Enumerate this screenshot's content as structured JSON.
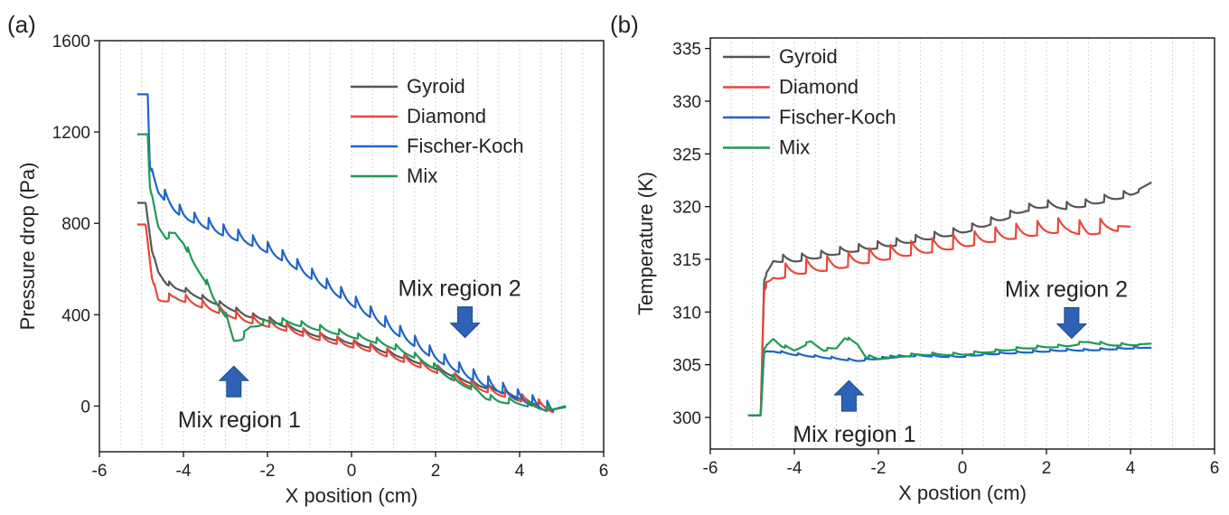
{
  "chart_data": [
    {
      "type": "line",
      "panel_label": "(a)",
      "xlabel": "X position (cm)",
      "ylabel": "Pressure drop (Pa)",
      "xlim": [
        -6,
        6
      ],
      "ylim": [
        -200,
        1600
      ],
      "xticks": [
        -6,
        -4,
        -2,
        0,
        2,
        4,
        6
      ],
      "yticks": [
        0,
        400,
        800,
        1200,
        1600
      ],
      "grid": "vertical dotted",
      "legend": "top-right",
      "annotations": [
        {
          "text": "Mix region 1",
          "arrow": "up",
          "x": -2.8,
          "y": 175
        },
        {
          "text": "Mix region 2",
          "arrow": "down",
          "x": 2.7,
          "y": 300
        }
      ],
      "series": [
        {
          "name": "Gyroid",
          "color": "#555555",
          "points": [
            [
              -5.1,
              890
            ],
            [
              -4.9,
              890
            ],
            [
              -4.75,
              680
            ],
            [
              -4.6,
              590
            ],
            [
              -4.4,
              540
            ],
            [
              -4.2,
              520
            ],
            [
              -4.0,
              510
            ],
            [
              -3.5,
              470
            ],
            [
              -3.0,
              440
            ],
            [
              -2.5,
              400
            ],
            [
              -2.0,
              380
            ],
            [
              -1.5,
              350
            ],
            [
              -1.0,
              320
            ],
            [
              -0.5,
              300
            ],
            [
              0,
              280
            ],
            [
              0.5,
              260
            ],
            [
              1.0,
              230
            ],
            [
              1.5,
              200
            ],
            [
              2.0,
              170
            ],
            [
              2.5,
              130
            ],
            [
              3.0,
              95
            ],
            [
              3.5,
              70
            ],
            [
              4.0,
              40
            ],
            [
              4.5,
              5
            ],
            [
              4.8,
              -15
            ],
            [
              5.1,
              0
            ]
          ],
          "osc": {
            "amp": 20,
            "period": 0.4
          }
        },
        {
          "name": "Diamond",
          "color": "#e8473c",
          "points": [
            [
              -5.1,
              795
            ],
            [
              -4.9,
              795
            ],
            [
              -4.75,
              560
            ],
            [
              -4.6,
              470
            ],
            [
              -4.4,
              470
            ],
            [
              -4.2,
              480
            ],
            [
              -4.0,
              470
            ],
            [
              -3.5,
              440
            ],
            [
              -3.0,
              410
            ],
            [
              -2.5,
              380
            ],
            [
              -2.0,
              360
            ],
            [
              -1.5,
              340
            ],
            [
              -1.0,
              310
            ],
            [
              -0.5,
              290
            ],
            [
              0,
              270
            ],
            [
              0.5,
              250
            ],
            [
              1.0,
              220
            ],
            [
              1.5,
              190
            ],
            [
              2.0,
              160
            ],
            [
              2.5,
              120
            ],
            [
              3.0,
              85
            ],
            [
              3.5,
              60
            ],
            [
              4.0,
              35
            ],
            [
              4.5,
              5
            ],
            [
              4.8,
              -15
            ],
            [
              5.1,
              0
            ]
          ],
          "osc": {
            "amp": 35,
            "period": 0.4
          }
        },
        {
          "name": "Fischer-Koch",
          "color": "#1f64c8",
          "points": [
            [
              -5.1,
              1365
            ],
            [
              -4.85,
              1365
            ],
            [
              -4.8,
              1050
            ],
            [
              -4.6,
              950
            ],
            [
              -4.2,
              870
            ],
            [
              -4.0,
              840
            ],
            [
              -3.5,
              800
            ],
            [
              -3.0,
              760
            ],
            [
              -2.5,
              730
            ],
            [
              -2.0,
              690
            ],
            [
              -1.5,
              640
            ],
            [
              -1.0,
              580
            ],
            [
              -0.5,
              520
            ],
            [
              0,
              460
            ],
            [
              0.5,
              400
            ],
            [
              1.0,
              340
            ],
            [
              1.5,
              280
            ],
            [
              2.0,
              220
            ],
            [
              2.5,
              170
            ],
            [
              3.0,
              120
            ],
            [
              3.5,
              80
            ],
            [
              4.0,
              40
            ],
            [
              4.5,
              5
            ],
            [
              4.8,
              -15
            ],
            [
              5.1,
              0
            ]
          ],
          "osc": {
            "amp": 50,
            "period": 0.35
          }
        },
        {
          "name": "Mix",
          "color": "#1f9a55",
          "points": [
            [
              -5.1,
              1190
            ],
            [
              -4.85,
              1190
            ],
            [
              -4.8,
              960
            ],
            [
              -4.6,
              790
            ],
            [
              -4.4,
              740
            ],
            [
              -4.2,
              760
            ],
            [
              -4.0,
              720
            ],
            [
              -3.8,
              640
            ],
            [
              -3.5,
              560
            ],
            [
              -3.3,
              480
            ],
            [
              -3.0,
              400
            ],
            [
              -2.8,
              290
            ],
            [
              -2.6,
              300
            ],
            [
              -2.4,
              350
            ],
            [
              -2.0,
              370
            ],
            [
              -1.5,
              370
            ],
            [
              -1.0,
              350
            ],
            [
              -0.5,
              330
            ],
            [
              0,
              310
            ],
            [
              0.5,
              290
            ],
            [
              1.0,
              260
            ],
            [
              1.5,
              220
            ],
            [
              2.0,
              170
            ],
            [
              2.5,
              110
            ],
            [
              3.0,
              70
            ],
            [
              3.2,
              40
            ],
            [
              3.5,
              25
            ],
            [
              4.0,
              15
            ],
            [
              4.5,
              -5
            ],
            [
              4.8,
              -15
            ],
            [
              5.1,
              -5
            ]
          ],
          "osc": {
            "amp": 25,
            "period": 0.45
          }
        }
      ]
    },
    {
      "type": "line",
      "panel_label": "(b)",
      "xlabel": "X postion (cm)",
      "ylabel": "Temperature (K)",
      "xlim": [
        -6,
        6
      ],
      "ylim": [
        297,
        336
      ],
      "xticks": [
        -6,
        -4,
        -2,
        0,
        2,
        4,
        6
      ],
      "yticks": [
        300,
        305,
        310,
        315,
        320,
        325,
        330,
        335
      ],
      "grid": "vertical dotted",
      "legend": "top-left",
      "annotations": [
        {
          "text": "Mix region 1",
          "arrow": "up",
          "x": -2.7,
          "y": 303.5
        },
        {
          "text": "Mix region 2",
          "arrow": "down",
          "x": 2.6,
          "y": 307.5
        }
      ],
      "series": [
        {
          "name": "Gyroid",
          "color": "#555555",
          "points": [
            [
              -5.1,
              300.2
            ],
            [
              -4.8,
              300.2
            ],
            [
              -4.72,
              313
            ],
            [
              -4.5,
              315
            ],
            [
              -4.0,
              315
            ],
            [
              -3.5,
              315.3
            ],
            [
              -3.0,
              315.7
            ],
            [
              -2.5,
              316
            ],
            [
              -2.0,
              316.3
            ],
            [
              -1.5,
              316.6
            ],
            [
              -1.0,
              317
            ],
            [
              -0.5,
              317.3
            ],
            [
              0,
              317.7
            ],
            [
              0.5,
              318.3
            ],
            [
              1.0,
              319
            ],
            [
              1.5,
              319.8
            ],
            [
              2.0,
              320.2
            ],
            [
              2.5,
              320
            ],
            [
              3.0,
              320.3
            ],
            [
              3.5,
              320.8
            ],
            [
              4.0,
              321.2
            ],
            [
              4.5,
              322.3
            ]
          ],
          "osc": {
            "amp": 0.7,
            "period": 0.45
          }
        },
        {
          "name": "Diamond",
          "color": "#e8473c",
          "points": [
            [
              -5.1,
              300.2
            ],
            [
              -4.8,
              300.2
            ],
            [
              -4.72,
              312
            ],
            [
              -4.5,
              313.5
            ],
            [
              -4.0,
              314
            ],
            [
              -3.5,
              314.3
            ],
            [
              -3.0,
              314.5
            ],
            [
              -2.5,
              315
            ],
            [
              -2.0,
              315.3
            ],
            [
              -1.5,
              315.7
            ],
            [
              -1.0,
              316
            ],
            [
              -0.5,
              316.3
            ],
            [
              0,
              316.6
            ],
            [
              0.5,
              317
            ],
            [
              1.0,
              317.3
            ],
            [
              1.5,
              317.6
            ],
            [
              2.0,
              317.9
            ],
            [
              2.5,
              318.1
            ],
            [
              3.0,
              317.7
            ],
            [
              3.5,
              318.2
            ],
            [
              4.0,
              318.1
            ]
          ],
          "osc": {
            "amp": 1.4,
            "period": 0.5
          }
        },
        {
          "name": "Fischer-Koch",
          "color": "#1f64c8",
          "points": [
            [
              -5.1,
              300.2
            ],
            [
              -4.8,
              300.2
            ],
            [
              -4.72,
              306.2
            ],
            [
              -4.5,
              306.3
            ],
            [
              -4.0,
              306
            ],
            [
              -3.5,
              305.8
            ],
            [
              -3.0,
              305.6
            ],
            [
              -2.5,
              305.4
            ],
            [
              -2.0,
              305.6
            ],
            [
              -1.5,
              305.8
            ],
            [
              -1.0,
              305.9
            ],
            [
              -0.5,
              305.8
            ],
            [
              0,
              305.8
            ],
            [
              0.5,
              306
            ],
            [
              1.0,
              306.1
            ],
            [
              1.5,
              306.2
            ],
            [
              2.0,
              306.3
            ],
            [
              2.5,
              306.4
            ],
            [
              3.0,
              306.4
            ],
            [
              3.5,
              306.5
            ],
            [
              4.0,
              306.6
            ],
            [
              4.5,
              306.6
            ]
          ],
          "osc": {
            "amp": 0.2,
            "period": 0.4
          }
        },
        {
          "name": "Mix",
          "color": "#1f9a55",
          "points": [
            [
              -5.1,
              300.2
            ],
            [
              -4.8,
              300.2
            ],
            [
              -4.72,
              306.5
            ],
            [
              -4.5,
              307.5
            ],
            [
              -4.3,
              306.8
            ],
            [
              -4.0,
              306.4
            ],
            [
              -3.6,
              307.2
            ],
            [
              -3.3,
              306.4
            ],
            [
              -3.0,
              306.6
            ],
            [
              -2.8,
              307.6
            ],
            [
              -2.5,
              307
            ],
            [
              -2.3,
              305.8
            ],
            [
              -2.0,
              305.6
            ],
            [
              -1.5,
              305.8
            ],
            [
              -1.0,
              306
            ],
            [
              -0.5,
              306
            ],
            [
              0,
              306
            ],
            [
              0.5,
              306.2
            ],
            [
              1.0,
              306.4
            ],
            [
              1.5,
              306.6
            ],
            [
              2.0,
              306.7
            ],
            [
              2.5,
              306.8
            ],
            [
              3.0,
              307.2
            ],
            [
              3.5,
              306.9
            ],
            [
              4.0,
              306.9
            ],
            [
              4.5,
              307
            ]
          ],
          "osc": {
            "amp": 0.25,
            "period": 0.5
          }
        }
      ]
    }
  ]
}
